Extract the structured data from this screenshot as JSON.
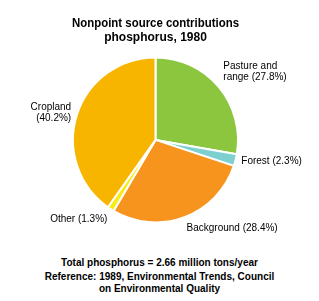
{
  "chart_data": {
    "type": "pie",
    "title": "Nonpoint source contributions\nphosphorus, 1980",
    "categories": [
      "Pasture and\nrange (27.8%)",
      "Forest (2.3%)",
      "Background (28.4%)",
      "Other (1.3%)",
      "Cropland\n(40.2%)"
    ],
    "values": [
      27.8,
      2.3,
      28.4,
      1.3,
      40.2
    ],
    "colors": [
      "#8cc63f",
      "#7ecfcf",
      "#f7941d",
      "#f7ec13",
      "#f7b500"
    ],
    "annotations": [
      "Total phosphorus = 2.66 million tons/year",
      "Reference: 1989, Environmental Trends, Council\non Environmental Quality"
    ]
  }
}
